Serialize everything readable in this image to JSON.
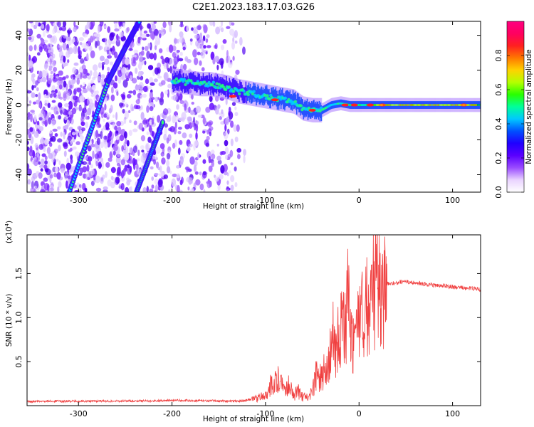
{
  "title": "C2E1.2023.183.17.03.G26",
  "chart_data": [
    {
      "type": "heatmap",
      "xlabel": "Height of straight line (km)",
      "ylabel": "Frequency (Hz)",
      "xlim": [
        -355,
        130
      ],
      "ylim": [
        -50,
        48
      ],
      "xticks": [
        -300,
        -200,
        -100,
        0,
        100
      ],
      "yticks": [
        -40,
        -20,
        0,
        20,
        40
      ],
      "colorbar": {
        "label": "Normalized spectral amplitude",
        "range": [
          0.0,
          1.0
        ],
        "ticks": [
          0.0,
          0.2,
          0.4,
          0.6,
          0.8
        ],
        "colors": [
          "#ffffff",
          "#e9d3ff",
          "#9a4cff",
          "#5a00ff",
          "#2000ff",
          "#0050ff",
          "#00c8ff",
          "#00ff9a",
          "#28ff00",
          "#b4ff00",
          "#ffd200",
          "#ff7800",
          "#ff2020",
          "#ff0060",
          "#ff0080"
        ]
      },
      "features": {
        "central_line": {
          "x": [
            -200,
            -185,
            -170,
            -160,
            -150,
            -140,
            -130,
            -120,
            -110,
            -100,
            -90,
            -80,
            -70,
            -60,
            -50,
            -40,
            -30,
            -20,
            -10,
            0,
            20,
            40,
            60,
            80,
            100,
            120,
            130
          ],
          "y": [
            14,
            13,
            12,
            12,
            11,
            10,
            8,
            7,
            6,
            5,
            4,
            3,
            2,
            -2,
            -3,
            -3,
            0,
            1,
            0,
            0,
            0,
            0,
            0,
            0,
            0,
            0,
            0
          ]
        },
        "diagonal_lines": [
          {
            "x": [
              -310,
              -268
            ],
            "y": [
              -50,
              14
            ]
          },
          {
            "x": [
              -268,
              -248
            ],
            "y": [
              14,
              35
            ]
          },
          {
            "x": [
              -248,
              -235
            ],
            "y": [
              35,
              48
            ]
          },
          {
            "x": [
              -238,
              -210
            ],
            "y": [
              -50,
              -10
            ]
          }
        ]
      },
      "grid": false
    },
    {
      "type": "line",
      "xlabel": "Height of straight line (km)",
      "ylabel": "SNR (10 * v/v)",
      "scale_label": "(x10",
      "scale_exp": "4",
      "xlim": [
        -355,
        130
      ],
      "ylim": [
        0,
        19400
      ],
      "xticks": [
        -300,
        -200,
        -100,
        0,
        100
      ],
      "yticks": [
        5000,
        10000,
        15000
      ],
      "ytick_labels": [
        "0.5",
        "1.0",
        "1.5"
      ],
      "color": "#f04040",
      "series": [
        {
          "x": [
            -355,
            -330,
            -300,
            -260,
            -220,
            -200,
            -160,
            -130,
            -110,
            -100,
            -95,
            -90,
            -85,
            -80,
            -75,
            -70,
            -65,
            -60,
            -55,
            -50,
            -45,
            -40,
            -35,
            -30,
            -25,
            -20,
            -15,
            -12,
            -10,
            -5,
            0,
            5,
            10,
            20,
            30,
            40,
            50,
            60,
            70,
            80,
            90,
            100,
            110,
            120,
            130
          ],
          "y": [
            450,
            500,
            500,
            520,
            550,
            600,
            550,
            500,
            800,
            1300,
            2200,
            2600,
            3200,
            2000,
            2500,
            1200,
            1600,
            900,
            700,
            1800,
            3800,
            3000,
            4200,
            5500,
            7000,
            8500,
            9000,
            12000,
            8500,
            7000,
            9000,
            11000,
            12500,
            13500,
            13800,
            14000,
            14100,
            14000,
            13800,
            13700,
            13600,
            13500,
            13400,
            13300,
            13200
          ]
        }
      ]
    }
  ]
}
